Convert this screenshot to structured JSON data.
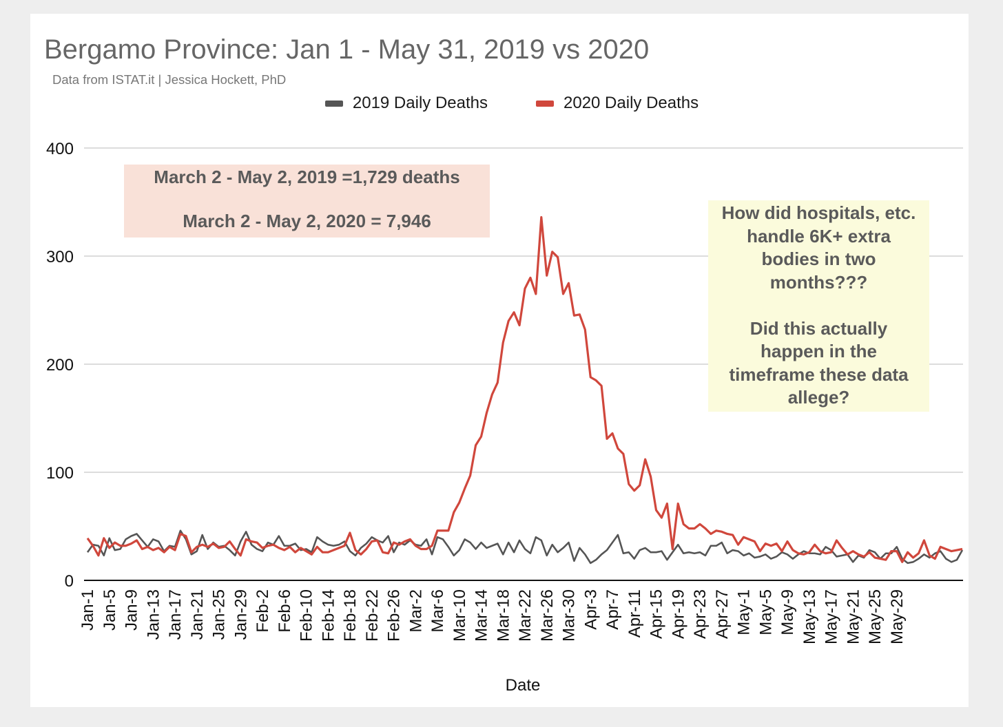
{
  "chart_data": {
    "type": "line",
    "title": "Bergamo Province: Jan 1 - May 31, 2019 vs 2020",
    "subtitle": "Data from ISTAT.it  | Jessica Hockett, PhD",
    "xlabel": "Date",
    "ylabel": "",
    "ylim": [
      0,
      400
    ],
    "yticks": [
      0,
      100,
      200,
      300,
      400
    ],
    "grid": true,
    "legend_position": "top",
    "x_tick_labels": [
      "Jan-1",
      "Jan-5",
      "Jan-9",
      "Jan-13",
      "Jan-17",
      "Jan-21",
      "Jan-25",
      "Jan-29",
      "Feb-2",
      "Feb-6",
      "Feb-10",
      "Feb-14",
      "Feb-18",
      "Feb-22",
      "Feb-26",
      "Mar-2",
      "Mar-6",
      "Mar-10",
      "Mar-14",
      "Mar-18",
      "Mar-22",
      "Mar-26",
      "Mar-30",
      "Apr-3",
      "Apr-7",
      "Apr-11",
      "Apr-15",
      "Apr-19",
      "Apr-23",
      "Apr-27",
      "May-1",
      "May-5",
      "May-9",
      "May-13",
      "May-17",
      "May-21",
      "May-25",
      "May-29"
    ],
    "series": [
      {
        "name": "2019 Daily Deaths",
        "color": "#555555",
        "values": [
          26,
          33,
          32,
          23,
          39,
          28,
          29,
          38,
          41,
          43,
          37,
          31,
          38,
          36,
          27,
          32,
          31,
          46,
          38,
          24,
          27,
          42,
          29,
          35,
          31,
          32,
          28,
          23,
          36,
          45,
          33,
          29,
          27,
          35,
          33,
          41,
          32,
          32,
          34,
          28,
          29,
          26,
          40,
          36,
          33,
          32,
          33,
          36,
          27,
          23,
          30,
          34,
          40,
          37,
          35,
          41,
          26,
          35,
          33,
          37,
          33,
          32,
          38,
          24,
          40,
          38,
          31,
          23,
          28,
          38,
          35,
          29,
          35,
          30,
          32,
          34,
          24,
          35,
          26,
          37,
          29,
          25,
          40,
          37,
          23,
          33,
          26,
          30,
          35,
          18,
          30,
          24,
          16,
          19,
          24,
          28,
          35,
          42,
          25,
          26,
          20,
          28,
          30,
          26,
          26,
          27,
          19,
          26,
          33,
          25,
          26,
          25,
          26,
          23,
          32,
          32,
          35,
          25,
          28,
          27,
          23,
          25,
          21,
          22,
          24,
          20,
          22,
          26,
          24,
          20,
          24,
          27,
          25,
          25,
          24,
          31,
          28,
          22,
          23,
          24,
          17,
          23,
          21,
          28,
          26,
          20,
          25,
          25,
          31,
          20,
          16,
          17,
          20,
          24,
          21,
          25,
          27,
          20,
          17,
          19,
          28
        ]
      },
      {
        "name": "2020 Daily Deaths",
        "color": "#d0473c",
        "values": [
          39,
          32,
          23,
          39,
          30,
          35,
          32,
          32,
          34,
          37,
          29,
          31,
          28,
          30,
          26,
          31,
          28,
          43,
          41,
          26,
          31,
          33,
          31,
          34,
          30,
          31,
          36,
          29,
          23,
          38,
          36,
          35,
          30,
          32,
          33,
          30,
          28,
          31,
          26,
          30,
          27,
          24,
          31,
          26,
          26,
          28,
          30,
          32,
          44,
          28,
          24,
          29,
          36,
          37,
          26,
          25,
          35,
          33,
          36,
          38,
          32,
          29,
          29,
          32,
          46,
          46,
          46,
          63,
          72,
          85,
          97,
          125,
          133,
          155,
          172,
          183,
          220,
          240,
          248,
          236,
          270,
          280,
          265,
          336,
          282,
          304,
          299,
          265,
          275,
          245,
          246,
          232,
          188,
          185,
          180,
          131,
          136,
          122,
          117,
          89,
          83,
          88,
          112,
          96,
          65,
          58,
          71,
          29,
          71,
          52,
          48,
          48,
          52,
          48,
          43,
          46,
          45,
          43,
          42,
          33,
          40,
          38,
          36,
          27,
          34,
          32,
          34,
          27,
          36,
          28,
          25,
          24,
          26,
          33,
          27,
          25,
          26,
          37,
          30,
          24,
          27,
          24,
          22,
          26,
          21,
          20,
          19,
          27,
          27,
          17,
          26,
          21,
          25,
          37,
          23,
          20,
          31,
          29,
          27,
          28,
          29
        ]
      }
    ],
    "annotations": {
      "stats_box": {
        "line1": "March 2 - May 2, 2019 =1,729 deaths",
        "line2": "March 2 - May 2, 2020 = 7,946"
      },
      "question_box": {
        "text": "How did hospitals, etc.\nhandle 6K+ extra\nbodies in two\nmonths???\n\nDid this actually\nhappen in the\ntimeframe these data\nallege?"
      }
    },
    "colors": {
      "background": "#eeeeee",
      "card": "#ffffff",
      "stats_box": "#f9e1d8",
      "question_box": "#fbfbdc"
    }
  }
}
